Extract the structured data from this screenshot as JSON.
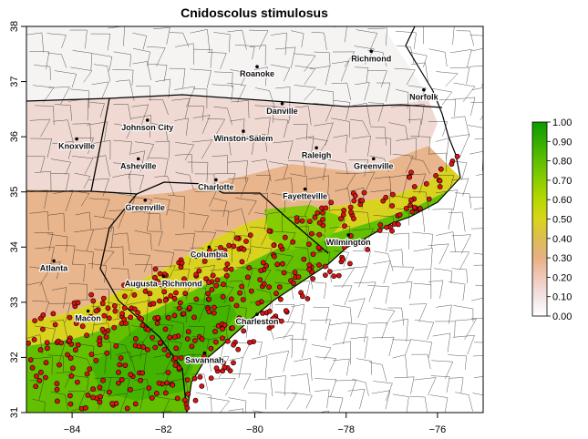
{
  "title": "Cnidoscolus stimulosus",
  "map": {
    "lon_range": [
      -85,
      -75
    ],
    "lat_range": [
      31,
      38
    ],
    "x_ticks": [
      {
        "value": -84,
        "label": "−84"
      },
      {
        "value": -82,
        "label": "−82"
      },
      {
        "value": -80,
        "label": "−80"
      },
      {
        "value": -78,
        "label": "−78"
      },
      {
        "value": -76,
        "label": "−76"
      }
    ],
    "y_ticks": [
      {
        "value": 31,
        "label": "31"
      },
      {
        "value": 32,
        "label": "32"
      },
      {
        "value": 33,
        "label": "33"
      },
      {
        "value": 34,
        "label": "34"
      },
      {
        "value": 35,
        "label": "35"
      },
      {
        "value": 36,
        "label": "36"
      },
      {
        "value": 37,
        "label": "37"
      },
      {
        "value": 38,
        "label": "38"
      }
    ],
    "cities": [
      {
        "name": "Richmond",
        "lon": -77.45,
        "lat": 37.55
      },
      {
        "name": "Roanoke",
        "lon": -79.95,
        "lat": 37.27
      },
      {
        "name": "Norfolk",
        "lon": -76.3,
        "lat": 36.85
      },
      {
        "name": "Danville",
        "lon": -79.4,
        "lat": 36.6
      },
      {
        "name": "Johnson City",
        "lon": -82.35,
        "lat": 36.3
      },
      {
        "name": "Knoxville",
        "lon": -83.9,
        "lat": 35.96
      },
      {
        "name": "Winston-Salem",
        "lon": -80.25,
        "lat": 36.1
      },
      {
        "name": "Raleigh",
        "lon": -78.65,
        "lat": 35.8
      },
      {
        "name": "Asheville",
        "lon": -82.55,
        "lat": 35.6
      },
      {
        "name": "Greenville",
        "lon": -77.4,
        "lat": 35.6
      },
      {
        "name": "Charlotte",
        "lon": -80.85,
        "lat": 35.22
      },
      {
        "name": "Fayetteville",
        "lon": -78.9,
        "lat": 35.05
      },
      {
        "name": "Greenville",
        "lon": -82.4,
        "lat": 34.85
      },
      {
        "name": "Wilmington",
        "lon": -77.95,
        "lat": 34.22
      },
      {
        "name": "Columbia",
        "lon": -81.0,
        "lat": 34.0
      },
      {
        "name": "Atlanta",
        "lon": -84.4,
        "lat": 33.75
      },
      {
        "name": "Augusta–Richmond",
        "lon": -82.0,
        "lat": 33.47
      },
      {
        "name": "Macon",
        "lon": -83.65,
        "lat": 32.84
      },
      {
        "name": "Charleston",
        "lon": -79.95,
        "lat": 32.78
      },
      {
        "name": "Savannah",
        "lon": -81.1,
        "lat": 32.08
      }
    ],
    "occurrence_color": "#dd1111",
    "ocean_color": "#ffffff"
  },
  "legend": {
    "title": "",
    "labels": [
      "1.00",
      "0.90",
      "0.80",
      "0.70",
      "0.60",
      "0.50",
      "0.40",
      "0.30",
      "0.20",
      "0.10",
      "0.00"
    ],
    "stops": [
      {
        "value": 0.0,
        "color": "#ffffff"
      },
      {
        "value": 0.1,
        "color": "#f3e4e4"
      },
      {
        "value": 0.2,
        "color": "#efc9b9"
      },
      {
        "value": 0.3,
        "color": "#e8b083"
      },
      {
        "value": 0.4,
        "color": "#dcbd55"
      },
      {
        "value": 0.5,
        "color": "#d8d51a"
      },
      {
        "value": 0.6,
        "color": "#b8d800"
      },
      {
        "value": 0.7,
        "color": "#8ccd00"
      },
      {
        "value": 0.8,
        "color": "#5fbf00"
      },
      {
        "value": 0.9,
        "color": "#33ad00"
      },
      {
        "value": 1.0,
        "color": "#0d9a00"
      }
    ]
  }
}
